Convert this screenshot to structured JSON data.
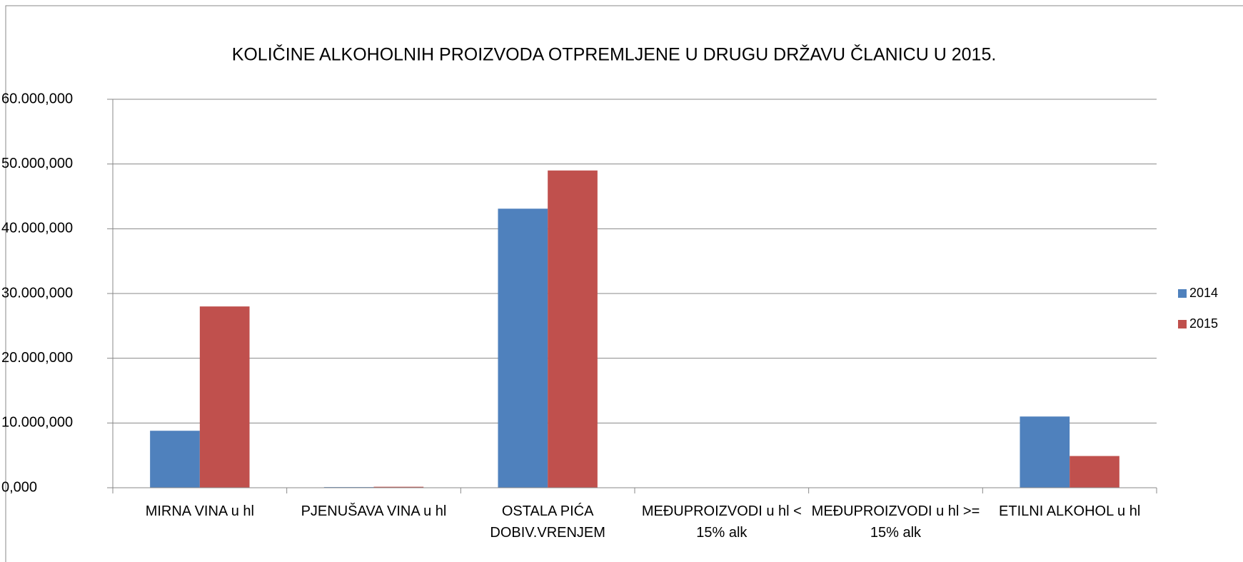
{
  "chart_data": {
    "type": "bar",
    "title": "KOLIČINE ALKOHOLNIH PROIZVODA OTPREMLJENE U DRUGU DRŽAVU ČLANICU  U 2015.",
    "categories": [
      "MIRNA VINA u hl",
      "PJENUŠAVA VINA u hl",
      "OSTALA PIĆA DOBIV.VRENJEM",
      "MEĐUPROIZVODI u hl <  15% alk",
      "MEĐUPROIZVODI u hl >= 15% alk",
      "ETILNI ALKOHOL u hl"
    ],
    "series": [
      {
        "name": "2014",
        "color": "#4f81bd",
        "values": [
          8800000,
          100000,
          43100000,
          50000,
          50000,
          11000000
        ]
      },
      {
        "name": "2015",
        "color": "#c0504d",
        "values": [
          28000000,
          150000,
          49000000,
          50000,
          50000,
          4900000
        ]
      }
    ],
    "ylim": [
      0,
      60000000
    ],
    "yticks": [
      {
        "value": 0,
        "label": "0,000"
      },
      {
        "value": 10000000,
        "label": "10.000,000"
      },
      {
        "value": 20000000,
        "label": "20.000,000"
      },
      {
        "value": 30000000,
        "label": "30.000,000"
      },
      {
        "value": 40000000,
        "label": "40.000,000"
      },
      {
        "value": 50000000,
        "label": "50.000,000"
      },
      {
        "value": 60000000,
        "label": "60.000,000"
      }
    ],
    "grid": true,
    "legend": "right"
  }
}
